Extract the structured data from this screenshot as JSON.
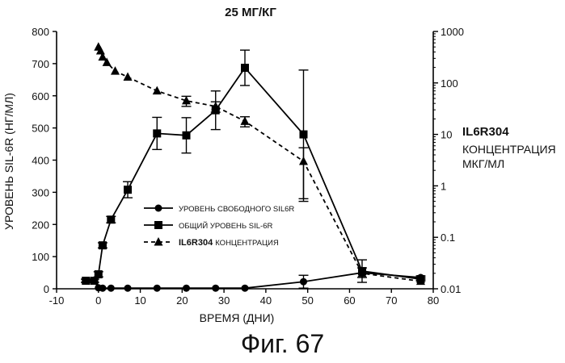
{
  "chart_data": {
    "type": "line",
    "title": "25 МГ/КГ",
    "xlabel": "ВРЕМЯ (ДНИ)",
    "ylabel": "УРОВЕНЬ SIL-6R (НГ/МЛ)",
    "xlim": [
      -10,
      80
    ],
    "ylim": [
      0,
      800
    ],
    "xticks": [
      "-10",
      "0",
      "10",
      "20",
      "30",
      "40",
      "50",
      "60",
      "70",
      "80"
    ],
    "yticks": [
      "0",
      "100",
      "200",
      "300",
      "400",
      "500",
      "600",
      "700",
      "800"
    ],
    "y2": {
      "scale": "log",
      "lim": [
        0.01,
        1000
      ],
      "ticks": [
        "0.01",
        "0.1",
        "1",
        "10",
        "100",
        "1000"
      ],
      "label_bold": "IL6R304",
      "label_lines": [
        "КОНЦЕНТРАЦИЯ",
        "МКГ/МЛ"
      ]
    },
    "legend_position": "center",
    "series": [
      {
        "name": "УРОВЕНЬ СВОБОДНОГО SIL6R",
        "marker": "circle",
        "line": "solid",
        "axis": "left",
        "x": [
          -3,
          -1,
          0,
          1,
          3,
          7,
          14,
          21,
          28,
          35,
          49,
          63,
          77
        ],
        "y": [
          25,
          25,
          3,
          2,
          2,
          2,
          2,
          2,
          2,
          2,
          22,
          50,
          35
        ],
        "err": [
          5,
          5,
          0,
          0,
          0,
          0,
          0,
          0,
          0,
          0,
          20,
          15,
          5
        ]
      },
      {
        "name": "ОБЩИЙ УРОВЕНЬ SIL-6R",
        "marker": "square",
        "line": "solid",
        "axis": "left",
        "x": [
          -3,
          -1,
          0,
          1,
          3,
          7,
          14,
          21,
          28,
          35,
          49,
          63,
          77
        ],
        "y": [
          25,
          25,
          45,
          135,
          215,
          308,
          483,
          477,
          555,
          687,
          480,
          55,
          30
        ],
        "err": [
          5,
          5,
          8,
          8,
          10,
          25,
          50,
          55,
          60,
          55,
          200,
          35,
          5
        ]
      },
      {
        "name": "IL6R304 КОНЦЕНТРАЦИЯ",
        "marker": "triangle",
        "line": "dashed",
        "axis": "right",
        "x": [
          0,
          0.5,
          1,
          2,
          4,
          7,
          14,
          21,
          28,
          35,
          49,
          63,
          77
        ],
        "y": [
          500,
          420,
          320,
          250,
          170,
          130,
          70,
          45,
          35,
          18,
          3,
          0.02,
          0.014
        ],
        "err": [
          0,
          0,
          0,
          0,
          0,
          0,
          0,
          10,
          8,
          4,
          2.5,
          0,
          0
        ]
      }
    ]
  },
  "caption": "Фиг. 67"
}
